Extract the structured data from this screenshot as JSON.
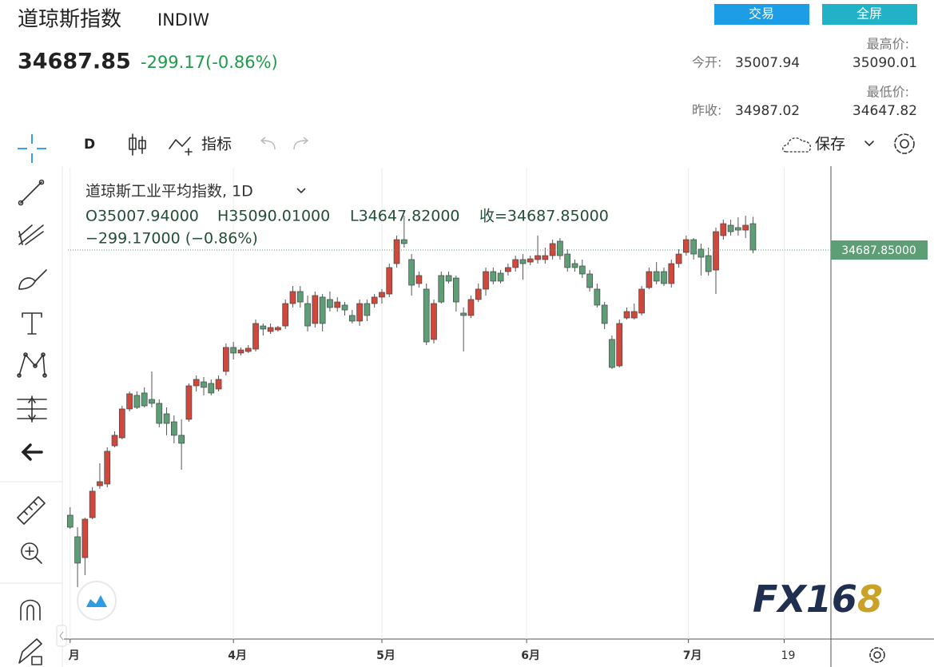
{
  "header": {
    "title": "道琼斯指数",
    "symbol": "INDIW",
    "price": "34687.85",
    "change": "-299.17(-0.86%)"
  },
  "buttons": [
    "交易",
    "全屏"
  ],
  "stats": {
    "open_label": "今开:",
    "open": "35007.94",
    "high_label": "最高价:",
    "high": "35090.01",
    "prev_label": "昨收:",
    "prev": "34987.02",
    "low_label": "最低价:",
    "low": "34647.82"
  },
  "toolbar": {
    "interval": "D",
    "indicators": "指标",
    "save": "保存"
  },
  "watermark": {
    "text": "FX16",
    "accent": "8"
  },
  "chart_data": {
    "type": "candlestick",
    "title": "道琼斯工业平均指数, 1D",
    "legend": {
      "open": "O35007.94000",
      "high": "H35090.01000",
      "low": "L34647.82000",
      "close": "收=34687.85000",
      "change": "−299.17000 (−0.86%)"
    },
    "up_color": "#d0473b",
    "down_color": "#5e9e76",
    "xlim": [
      -0.3,
      102.5
    ],
    "ylim": [
      29964,
      35687
    ],
    "xticks": [
      {
        "value": 0,
        "label": "月"
      },
      {
        "value": 22,
        "label": "4月"
      },
      {
        "value": 42,
        "label": "5月"
      },
      {
        "value": 61.5,
        "label": "6月"
      },
      {
        "value": 83.3,
        "label": "7月"
      },
      {
        "value": 96.2,
        "label": "19"
      }
    ],
    "last_price": {
      "value": 34687.85,
      "label": "34687.85000"
    },
    "ohlc": [
      [
        31468,
        31565,
        31303,
        31322
      ],
      [
        31206,
        31322,
        30595,
        30886
      ],
      [
        30953,
        31438,
        30740,
        31419
      ],
      [
        31438,
        31807,
        31419,
        31759
      ],
      [
        31826,
        32098,
        31788,
        31875
      ],
      [
        31846,
        32292,
        31807,
        32244
      ],
      [
        32311,
        32486,
        32292,
        32438
      ],
      [
        32408,
        32796,
        32389,
        32758
      ],
      [
        32758,
        32971,
        32729,
        32942
      ],
      [
        32923,
        32971,
        32758,
        32777
      ],
      [
        32952,
        33020,
        32777,
        32796
      ],
      [
        32874,
        33214,
        32777,
        32826
      ],
      [
        32826,
        32874,
        32535,
        32583
      ],
      [
        32699,
        32777,
        32438,
        32583
      ],
      [
        32602,
        32680,
        32341,
        32438
      ],
      [
        32438,
        32632,
        32020,
        32341
      ],
      [
        32632,
        33068,
        32602,
        33039
      ],
      [
        33039,
        33165,
        32971,
        33117
      ],
      [
        33087,
        33146,
        32923,
        33020
      ],
      [
        33068,
        33117,
        32923,
        32952
      ],
      [
        33000,
        33165,
        32971,
        33117
      ],
      [
        33214,
        33553,
        33165,
        33505
      ],
      [
        33505,
        33572,
        33359,
        33437
      ],
      [
        33437,
        33505,
        33408,
        33475
      ],
      [
        33456,
        33534,
        33437,
        33495
      ],
      [
        33485,
        33844,
        33456,
        33796
      ],
      [
        33766,
        33796,
        33650,
        33728
      ],
      [
        33699,
        33796,
        33669,
        33747
      ],
      [
        33718,
        33766,
        33699,
        33747
      ],
      [
        33766,
        34087,
        33728,
        34038
      ],
      [
        34038,
        34251,
        33990,
        34184
      ],
      [
        34184,
        34251,
        33990,
        34057
      ],
      [
        34038,
        34135,
        33699,
        33766
      ],
      [
        33796,
        34184,
        33747,
        34135
      ],
      [
        34116,
        34154,
        33699,
        33796
      ],
      [
        34087,
        34184,
        33941,
        33990
      ],
      [
        33990,
        34116,
        33941,
        34057
      ],
      [
        34019,
        34057,
        33893,
        33960
      ],
      [
        33893,
        33960,
        33796,
        33825
      ],
      [
        33825,
        34087,
        33766,
        34038
      ],
      [
        34038,
        34087,
        33825,
        33893
      ],
      [
        34038,
        34154,
        33990,
        34116
      ],
      [
        34116,
        34213,
        34038,
        34174
      ],
      [
        34154,
        34523,
        34116,
        34475
      ],
      [
        34523,
        34863,
        34475,
        34814
      ],
      [
        34814,
        35105,
        34717,
        34766
      ],
      [
        34572,
        34639,
        34135,
        34261
      ],
      [
        34281,
        34426,
        34232,
        34378
      ],
      [
        34213,
        34281,
        33534,
        33572
      ],
      [
        33602,
        34087,
        33553,
        34038
      ],
      [
        34378,
        34426,
        34038,
        34057
      ],
      [
        34378,
        34426,
        34281,
        34310
      ],
      [
        34348,
        34378,
        33941,
        34057
      ],
      [
        33922,
        33990,
        33456,
        33893
      ],
      [
        33893,
        34135,
        33863,
        34087
      ],
      [
        34087,
        34281,
        34057,
        34213
      ],
      [
        34213,
        34475,
        34135,
        34426
      ],
      [
        34426,
        34475,
        34271,
        34310
      ],
      [
        34407,
        34445,
        34281,
        34310
      ],
      [
        34426,
        34523,
        34378,
        34475
      ],
      [
        34475,
        34620,
        34426,
        34572
      ],
      [
        34572,
        34639,
        34329,
        34523
      ],
      [
        34542,
        34620,
        34504,
        34581
      ],
      [
        34572,
        34863,
        34523,
        34620
      ],
      [
        34572,
        34717,
        34523,
        34620
      ],
      [
        34620,
        34814,
        34572,
        34766
      ],
      [
        34795,
        34833,
        34572,
        34620
      ],
      [
        34639,
        34698,
        34426,
        34475
      ],
      [
        34523,
        34572,
        34426,
        34475
      ],
      [
        34494,
        34572,
        34348,
        34397
      ],
      [
        34397,
        34445,
        34184,
        34232
      ],
      [
        34213,
        34281,
        33990,
        34019
      ],
      [
        34019,
        34057,
        33728,
        33796
      ],
      [
        33602,
        33650,
        33243,
        33262
      ],
      [
        33281,
        33844,
        33262,
        33796
      ],
      [
        33863,
        33990,
        33844,
        33941
      ],
      [
        33863,
        34038,
        33844,
        33941
      ],
      [
        33922,
        34251,
        33893,
        34213
      ],
      [
        34232,
        34475,
        34213,
        34426
      ],
      [
        34426,
        34542,
        34271,
        34310
      ],
      [
        34426,
        34475,
        34251,
        34281
      ],
      [
        34281,
        34572,
        34232,
        34523
      ],
      [
        34523,
        34698,
        34475,
        34639
      ],
      [
        34659,
        34863,
        34620,
        34814
      ],
      [
        34814,
        34833,
        34572,
        34639
      ],
      [
        34698,
        34766,
        34378,
        34601
      ],
      [
        34620,
        34717,
        34378,
        34426
      ],
      [
        34445,
        34960,
        34154,
        34911
      ],
      [
        34863,
        35057,
        34814,
        35008
      ],
      [
        34989,
        35057,
        34863,
        34911
      ],
      [
        34960,
        35086,
        34863,
        34930
      ],
      [
        34930,
        35105,
        34833,
        34989
      ],
      [
        35007.94,
        35090.01,
        34647.82,
        34687.85
      ]
    ]
  }
}
